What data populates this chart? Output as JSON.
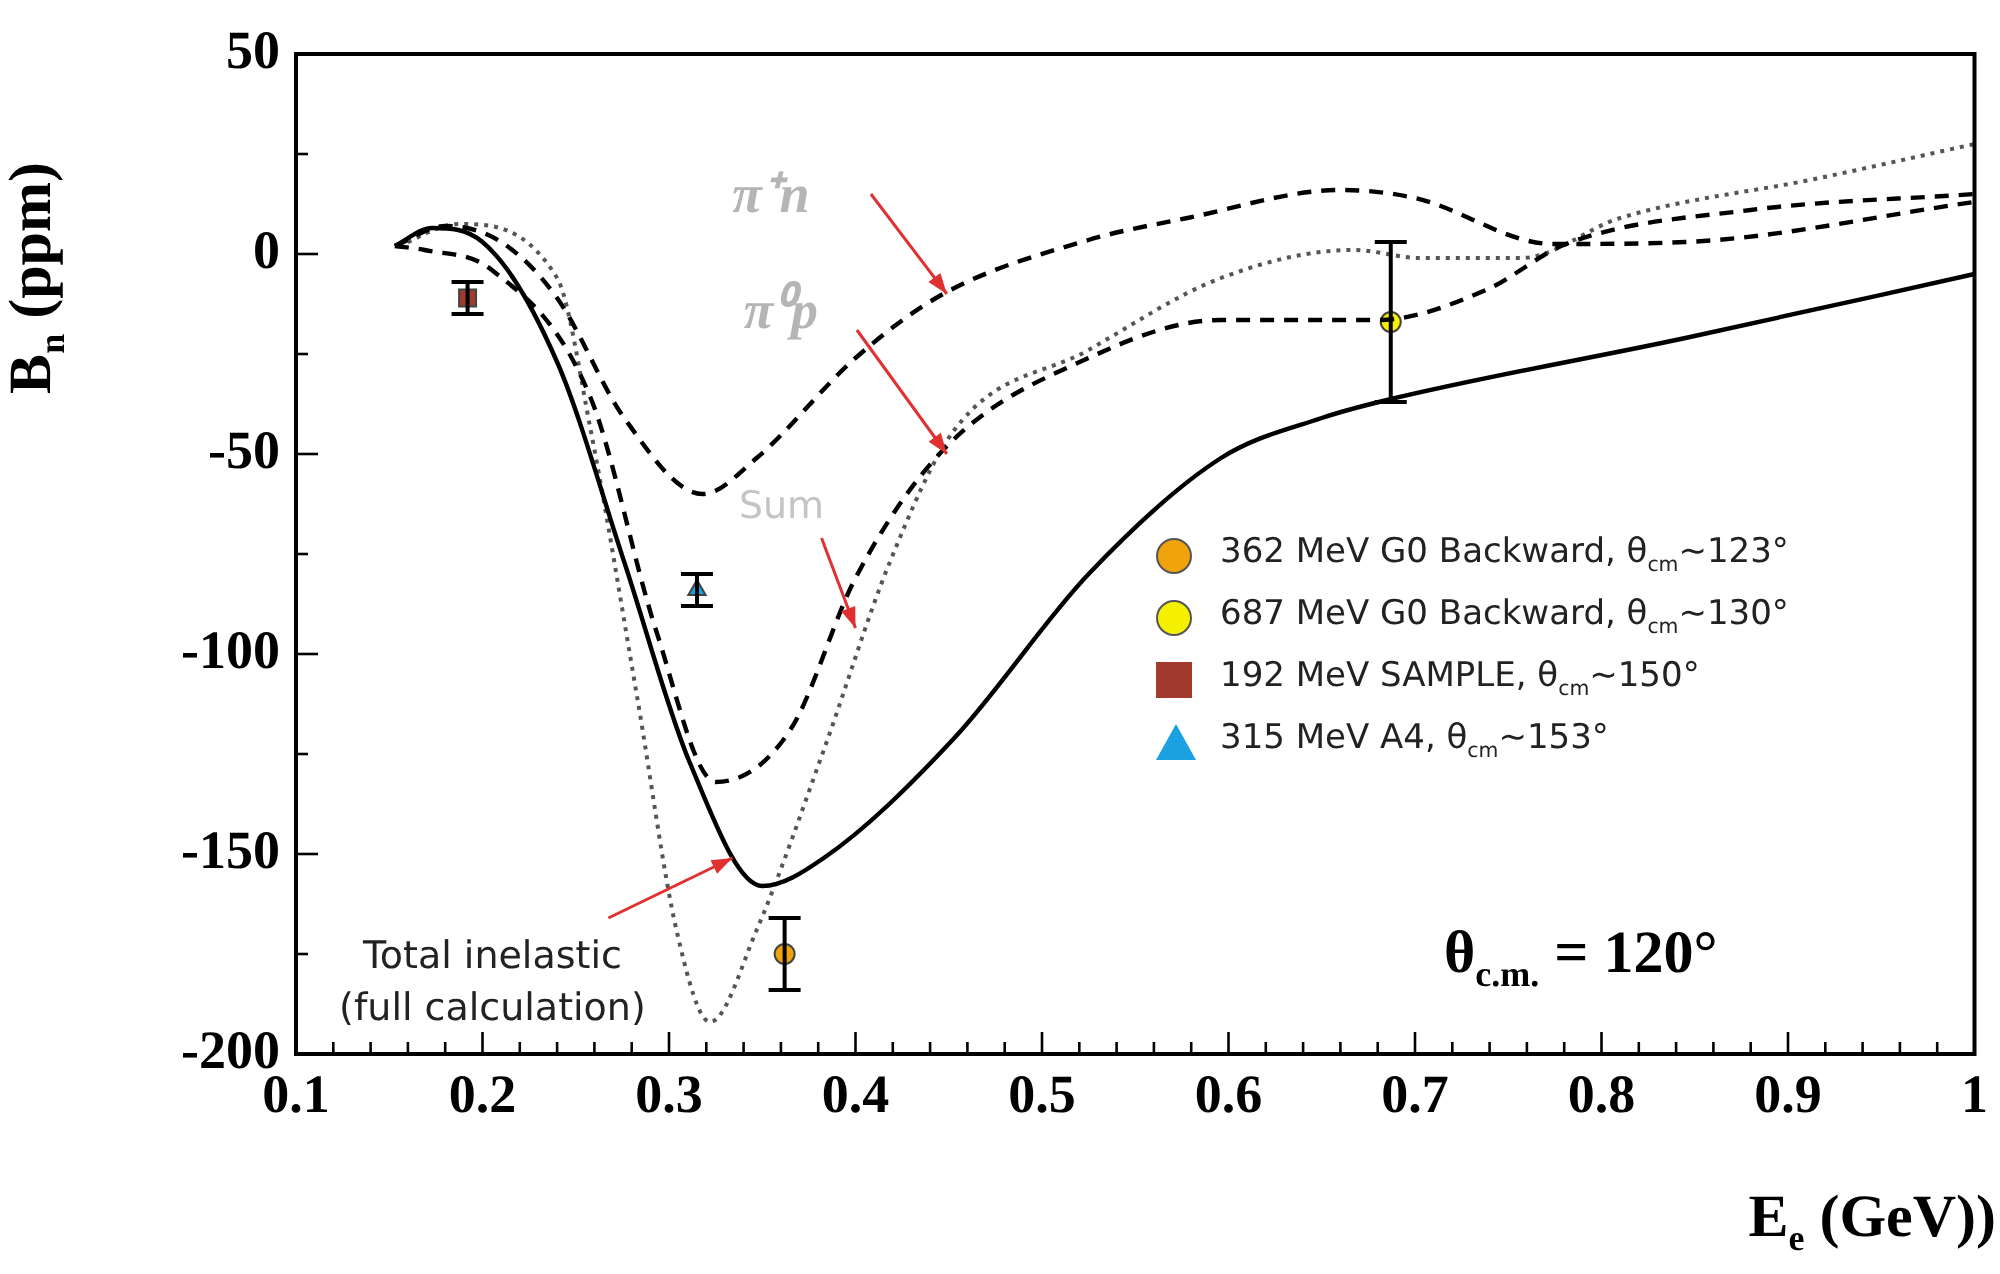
{
  "chart_data": {
    "type": "line",
    "xlabel": "E$_{e}$ (GeV))",
    "ylabel": "B$_{n}$ (ppm)",
    "xlim": [
      0.1,
      1
    ],
    "ylim": [
      -200,
      50
    ],
    "xticks": [
      0.1,
      {
        "value": 0.12,
        "label": null
      },
      {
        "value": 0.14,
        "label": null
      },
      {
        "value": 0.16,
        "label": null
      },
      {
        "value": 0.18,
        "label": null
      },
      0.2,
      {
        "value": 0.22,
        "label": null
      },
      {
        "value": 0.24,
        "label": null
      },
      {
        "value": 0.26,
        "label": null
      },
      {
        "value": 0.28,
        "label": null
      },
      0.3,
      {
        "value": 0.32,
        "label": null
      },
      {
        "value": 0.34,
        "label": null
      },
      {
        "value": 0.36,
        "label": null
      },
      {
        "value": 0.38,
        "label": null
      },
      0.4,
      {
        "value": 0.42,
        "label": null
      },
      {
        "value": 0.44,
        "label": null
      },
      {
        "value": 0.46,
        "label": null
      },
      {
        "value": 0.48,
        "label": null
      },
      0.5,
      {
        "value": 0.52,
        "label": null
      },
      {
        "value": 0.54,
        "label": null
      },
      {
        "value": 0.56,
        "label": null
      },
      {
        "value": 0.58,
        "label": null
      },
      0.6,
      {
        "value": 0.62,
        "label": null
      },
      {
        "value": 0.64,
        "label": null
      },
      {
        "value": 0.66,
        "label": null
      },
      {
        "value": 0.68,
        "label": null
      },
      0.7,
      {
        "value": 0.72,
        "label": null
      },
      {
        "value": 0.74,
        "label": null
      },
      {
        "value": 0.76,
        "label": null
      },
      {
        "value": 0.78,
        "label": null
      },
      0.8,
      {
        "value": 0.82,
        "label": null
      },
      {
        "value": 0.84,
        "label": null
      },
      {
        "value": 0.86,
        "label": null
      },
      {
        "value": 0.88,
        "label": null
      },
      0.9,
      {
        "value": 0.92,
        "label": null
      },
      {
        "value": 0.94,
        "label": null
      },
      {
        "value": 0.96,
        "label": null
      },
      {
        "value": 0.98,
        "label": null
      },
      1
    ],
    "yticks": [
      50,
      {
        "value": 25,
        "label": null
      },
      0,
      {
        "value": -25,
        "label": null
      },
      -50,
      {
        "value": -75,
        "label": null
      },
      -100,
      {
        "value": -125,
        "label": null
      },
      -150,
      {
        "value": -175,
        "label": null
      },
      -200
    ],
    "legend": "right",
    "series": [
      {
        "color": "#000000",
        "line_style": "solid",
        "marker": "none",
        "x": [
          0.153,
          0.173,
          0.2,
          0.24,
          0.276,
          0.311,
          0.35,
          0.383,
          0.453,
          0.525,
          0.596,
          0.65,
          0.685,
          0.845,
          1.0
        ],
        "values": [
          2,
          6.5,
          3,
          -27,
          -77,
          -127,
          -158,
          -151,
          -121,
          -80,
          -51,
          -41,
          -36.5,
          -21,
          -5
        ]
      },
      {
        "color": "#000000",
        "line_style": "dashed",
        "marker": "none",
        "x": [
          0.153,
          0.18,
          0.21,
          0.24,
          0.276,
          0.318,
          0.347,
          0.4,
          0.447,
          0.525,
          0.578,
          0.66,
          0.7,
          0.774,
          0.845,
          1.0
        ],
        "values": [
          2,
          7,
          3,
          -11,
          -41,
          -60,
          -51,
          -26,
          -10,
          3.5,
          9,
          16,
          14,
          2.5,
          3,
          13
        ]
      },
      {
        "color": "#000000",
        "line_style": "dashed",
        "marker": "none",
        "x": [
          0.153,
          0.169,
          0.205,
          0.258,
          0.293,
          0.325,
          0.365,
          0.4,
          0.447,
          0.525,
          0.596,
          0.68,
          0.738,
          0.781,
          0.88,
          1.0
        ],
        "values": [
          2,
          1,
          -4,
          -36,
          -94,
          -132,
          -119,
          -81,
          -49,
          -26,
          -16.5,
          -16.5,
          -9,
          2.5,
          11,
          15
        ]
      },
      {
        "color": "#555555",
        "line_style": "dotted",
        "marker": "none",
        "x": [
          0.155,
          0.187,
          0.24,
          0.258,
          0.283,
          0.304,
          0.322,
          0.347,
          0.383,
          0.418,
          0.453,
          0.525,
          0.596,
          0.667,
          0.703,
          0.757,
          0.81,
          0.917,
          1.0
        ],
        "values": [
          2,
          7.5,
          -6,
          -44,
          -111,
          -169,
          -192,
          -169,
          -124,
          -77.5,
          -44,
          -24,
          -6,
          1,
          -1,
          -1,
          9,
          19,
          27.5
        ]
      },
      {
        "type": "scatter",
        "name": "362 MeV G0 Backward, θ$_{cm}$~123°",
        "color": "#f0a30a",
        "marker": "circle",
        "x": [
          0.362
        ],
        "values": [
          -175
        ],
        "errors": [
          9
        ]
      },
      {
        "type": "scatter",
        "name": "687 MeV G0 Backward, θ$_{cm}$~130°",
        "color": "#f5f000",
        "marker": "circle",
        "x": [
          0.687
        ],
        "values": [
          -17
        ],
        "errors": [
          20
        ]
      },
      {
        "type": "scatter",
        "name": "192 MeV SAMPLE, θ$_{cm}$~150°",
        "color": "#a33a2f",
        "marker": "square",
        "x": [
          0.192
        ],
        "values": [
          -11
        ],
        "errors": [
          4
        ]
      },
      {
        "type": "scatter",
        "name": "315 MeV A4, θ$_{cm}$~153°",
        "color": "#1ba1e2",
        "marker": "triangle",
        "x": [
          0.315
        ],
        "values": [
          -84
        ],
        "errors": [
          4
        ]
      }
    ],
    "annotations": [
      {
        "text": "π⁺n",
        "x": 0.449,
        "y": -10
      },
      {
        "text": "π⁰p",
        "x": 0.449,
        "y": -50
      },
      {
        "text": "Sum",
        "x": 0.4,
        "y": -93.5
      },
      {
        "text": "Total inelastic\n(full calculation)",
        "x": 0.334,
        "y": -151
      },
      "θ$_{c.m.}$ = 120°"
    ]
  }
}
